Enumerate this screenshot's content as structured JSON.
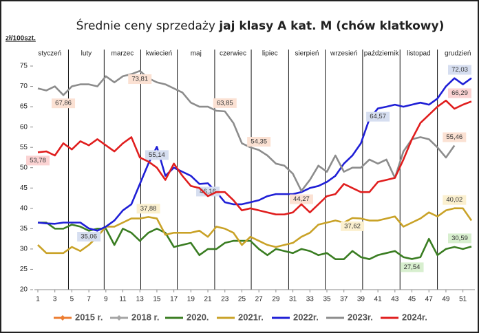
{
  "chart_data": {
    "type": "line",
    "title": [
      "Średnie ceny sprzedaży ",
      "jaj klasy A kat.  M (chów klatkowy)"
    ],
    "y_label": "zł/100szt.",
    "months": [
      "styczeń",
      "luty",
      "marzec",
      "kwiecień",
      "maj",
      "czerwiec",
      "lipiec",
      "sierpień",
      "wrzesień",
      "październik",
      "listopad",
      "grudzień"
    ],
    "x": [
      1,
      2,
      3,
      4,
      5,
      6,
      7,
      8,
      9,
      10,
      11,
      12,
      13,
      14,
      15,
      16,
      17,
      18,
      19,
      20,
      21,
      22,
      23,
      24,
      25,
      26,
      27,
      28,
      29,
      30,
      31,
      32,
      33,
      34,
      35,
      36,
      37,
      38,
      39,
      40,
      41,
      42,
      43,
      44,
      45,
      46,
      47,
      48,
      49,
      50,
      51,
      52
    ],
    "xlim": [
      1,
      52
    ],
    "xticks": [
      1,
      3,
      5,
      7,
      9,
      11,
      13,
      15,
      17,
      19,
      21,
      23,
      25,
      27,
      29,
      31,
      33,
      35,
      37,
      39,
      41,
      43,
      45,
      47,
      49,
      51
    ],
    "ylim": [
      20,
      75
    ],
    "yticks": [
      20,
      25,
      30,
      35,
      40,
      45,
      50,
      55,
      60,
      65,
      70,
      75
    ],
    "grid": false,
    "series": [
      {
        "name": "2015 r.",
        "color": "#ed7d31",
        "values": [
          null,
          null,
          null,
          null,
          null,
          null,
          null,
          null,
          null,
          null,
          null,
          null,
          null,
          null,
          null,
          null,
          null,
          null,
          null,
          null,
          null,
          null,
          null,
          null,
          null,
          null,
          null,
          null,
          null,
          null,
          null,
          null,
          null,
          null,
          null,
          null,
          null,
          null,
          null,
          null,
          null,
          null,
          null,
          null,
          null,
          null,
          null,
          null,
          null,
          null,
          null,
          null
        ]
      },
      {
        "name": "2018 r.",
        "color": "#a5a5a5",
        "values": [
          null,
          null,
          null,
          null,
          null,
          null,
          null,
          null,
          null,
          null,
          null,
          null,
          null,
          null,
          null,
          null,
          null,
          null,
          null,
          null,
          null,
          null,
          null,
          null,
          null,
          null,
          null,
          null,
          null,
          null,
          null,
          null,
          null,
          null,
          null,
          null,
          null,
          null,
          null,
          null,
          null,
          null,
          null,
          null,
          null,
          null,
          null,
          null,
          null,
          null,
          null,
          null
        ]
      },
      {
        "name": "2020.",
        "color": "#3a7d22",
        "values": [
          36.5,
          36.5,
          35,
          35,
          36,
          35.5,
          34.5,
          35,
          35,
          31,
          35,
          34,
          32,
          34,
          35,
          34,
          30.5,
          31,
          31.5,
          28.5,
          30,
          30,
          31.5,
          32,
          32,
          32,
          30,
          28.5,
          30,
          29.5,
          29,
          30,
          29.5,
          28.5,
          29,
          27.5,
          27.5,
          29.5,
          28,
          27.5,
          28.5,
          29,
          29.5,
          28,
          27.54,
          28,
          32.5,
          28.5,
          30,
          30.5,
          30,
          30.59
        ],
        "value_labels": [
          null,
          null,
          null,
          null,
          null,
          null,
          null,
          null,
          null,
          null,
          null,
          null,
          null,
          null,
          null,
          null,
          null,
          null,
          null,
          null,
          null,
          null,
          null,
          null,
          null,
          null,
          null,
          null,
          null,
          null,
          null,
          null,
          null,
          null,
          null,
          null,
          null,
          null,
          null,
          null,
          null,
          null,
          null,
          null,
          "27,54",
          null,
          null,
          null,
          null,
          null,
          null,
          "30,59"
        ]
      },
      {
        "name": "2021r.",
        "color": "#c9a227",
        "values": [
          31,
          29,
          29,
          29,
          30.5,
          29.5,
          31,
          33,
          35.5,
          35.5,
          36.5,
          37.5,
          37.5,
          37.88,
          37.5,
          33.5,
          34,
          34,
          34,
          34.5,
          33,
          35.5,
          35,
          34,
          31,
          33,
          32,
          31,
          30.5,
          31,
          31.5,
          33,
          34,
          36,
          36.5,
          37,
          36.5,
          37.62,
          37.5,
          37,
          37,
          37.5,
          38,
          35.5,
          36.5,
          37.5,
          39,
          38,
          39.5,
          40.02,
          40,
          37
        ],
        "value_labels": [
          null,
          null,
          null,
          null,
          null,
          null,
          null,
          null,
          null,
          null,
          null,
          null,
          null,
          "37,88",
          null,
          null,
          null,
          null,
          null,
          null,
          null,
          null,
          null,
          null,
          null,
          null,
          null,
          null,
          null,
          null,
          null,
          null,
          null,
          null,
          null,
          null,
          null,
          "37,62",
          null,
          null,
          null,
          null,
          null,
          null,
          null,
          null,
          null,
          null,
          null,
          "40,02",
          null,
          null
        ]
      },
      {
        "name": "2022r.",
        "color": "#1f1fd6",
        "values": [
          36.5,
          36.3,
          36.2,
          36.5,
          36.5,
          36.5,
          35.06,
          34.5,
          35.5,
          37,
          39.5,
          41,
          46,
          51,
          55.14,
          48,
          50,
          49,
          48,
          46,
          46.16,
          44,
          41.5,
          41,
          41,
          41.5,
          42,
          43,
          43.5,
          43.5,
          43.5,
          44,
          45,
          45.5,
          46.5,
          48,
          51,
          53,
          56,
          62,
          64.57,
          65,
          65.5,
          65,
          65.5,
          66,
          65.5,
          67,
          70,
          72,
          70.5,
          72.03
        ],
        "value_labels": [
          null,
          null,
          null,
          null,
          null,
          null,
          "35,06",
          null,
          null,
          null,
          null,
          null,
          null,
          null,
          "55,14",
          null,
          null,
          null,
          null,
          null,
          "46,16",
          null,
          null,
          null,
          null,
          null,
          null,
          null,
          null,
          null,
          null,
          null,
          null,
          null,
          null,
          null,
          null,
          null,
          null,
          null,
          "64,57",
          null,
          null,
          null,
          null,
          null,
          null,
          null,
          null,
          null,
          null,
          "72,03"
        ]
      },
      {
        "name": "2023r.",
        "color": "#8c8c8c",
        "values": [
          69.5,
          69,
          70,
          67.86,
          70,
          70.5,
          70.5,
          70,
          72.5,
          71,
          72.5,
          73,
          73.81,
          72,
          71,
          70.5,
          69.5,
          68.5,
          66,
          65,
          65,
          64,
          63.85,
          61,
          56,
          55,
          54.35,
          53,
          51,
          50.5,
          48.5,
          44.27,
          47,
          50.5,
          49,
          53,
          49,
          50,
          50,
          52,
          51,
          52,
          47.5,
          54,
          57,
          57.5,
          57,
          55,
          52.5,
          55.46,
          null,
          null
        ],
        "value_labels": [
          null,
          null,
          null,
          "67,86",
          null,
          null,
          null,
          null,
          null,
          null,
          null,
          null,
          "73,81",
          null,
          null,
          null,
          null,
          null,
          null,
          null,
          null,
          null,
          "63,85",
          null,
          null,
          null,
          "54,35",
          null,
          null,
          null,
          null,
          "44,27",
          null,
          null,
          null,
          null,
          null,
          null,
          null,
          null,
          null,
          null,
          null,
          null,
          null,
          null,
          null,
          null,
          null,
          "55,46",
          null,
          null
        ]
      },
      {
        "name": "2024r.",
        "color": "#e01e1e",
        "values": [
          53.78,
          54,
          53,
          56,
          54.5,
          56.5,
          55.5,
          57,
          55.5,
          54,
          56,
          57.5,
          52.5,
          51.5,
          50,
          47,
          51,
          48,
          45.5,
          45,
          43,
          44,
          44,
          42,
          39.5,
          40,
          39.5,
          39,
          38.5,
          38.5,
          39,
          41,
          39,
          41,
          43,
          43.5,
          46,
          45,
          44,
          44,
          46.5,
          47,
          47.5,
          52,
          57,
          61,
          63,
          65,
          66.5,
          64.5,
          65.5,
          66.29
        ],
        "value_labels": [
          "53,78",
          null,
          null,
          null,
          null,
          null,
          null,
          null,
          null,
          null,
          null,
          null,
          null,
          null,
          null,
          null,
          null,
          null,
          null,
          null,
          null,
          null,
          null,
          null,
          null,
          null,
          null,
          null,
          null,
          null,
          null,
          null,
          null,
          null,
          null,
          null,
          null,
          null,
          null,
          null,
          null,
          null,
          null,
          null,
          null,
          null,
          null,
          null,
          null,
          null,
          null,
          "66,29"
        ]
      }
    ]
  }
}
